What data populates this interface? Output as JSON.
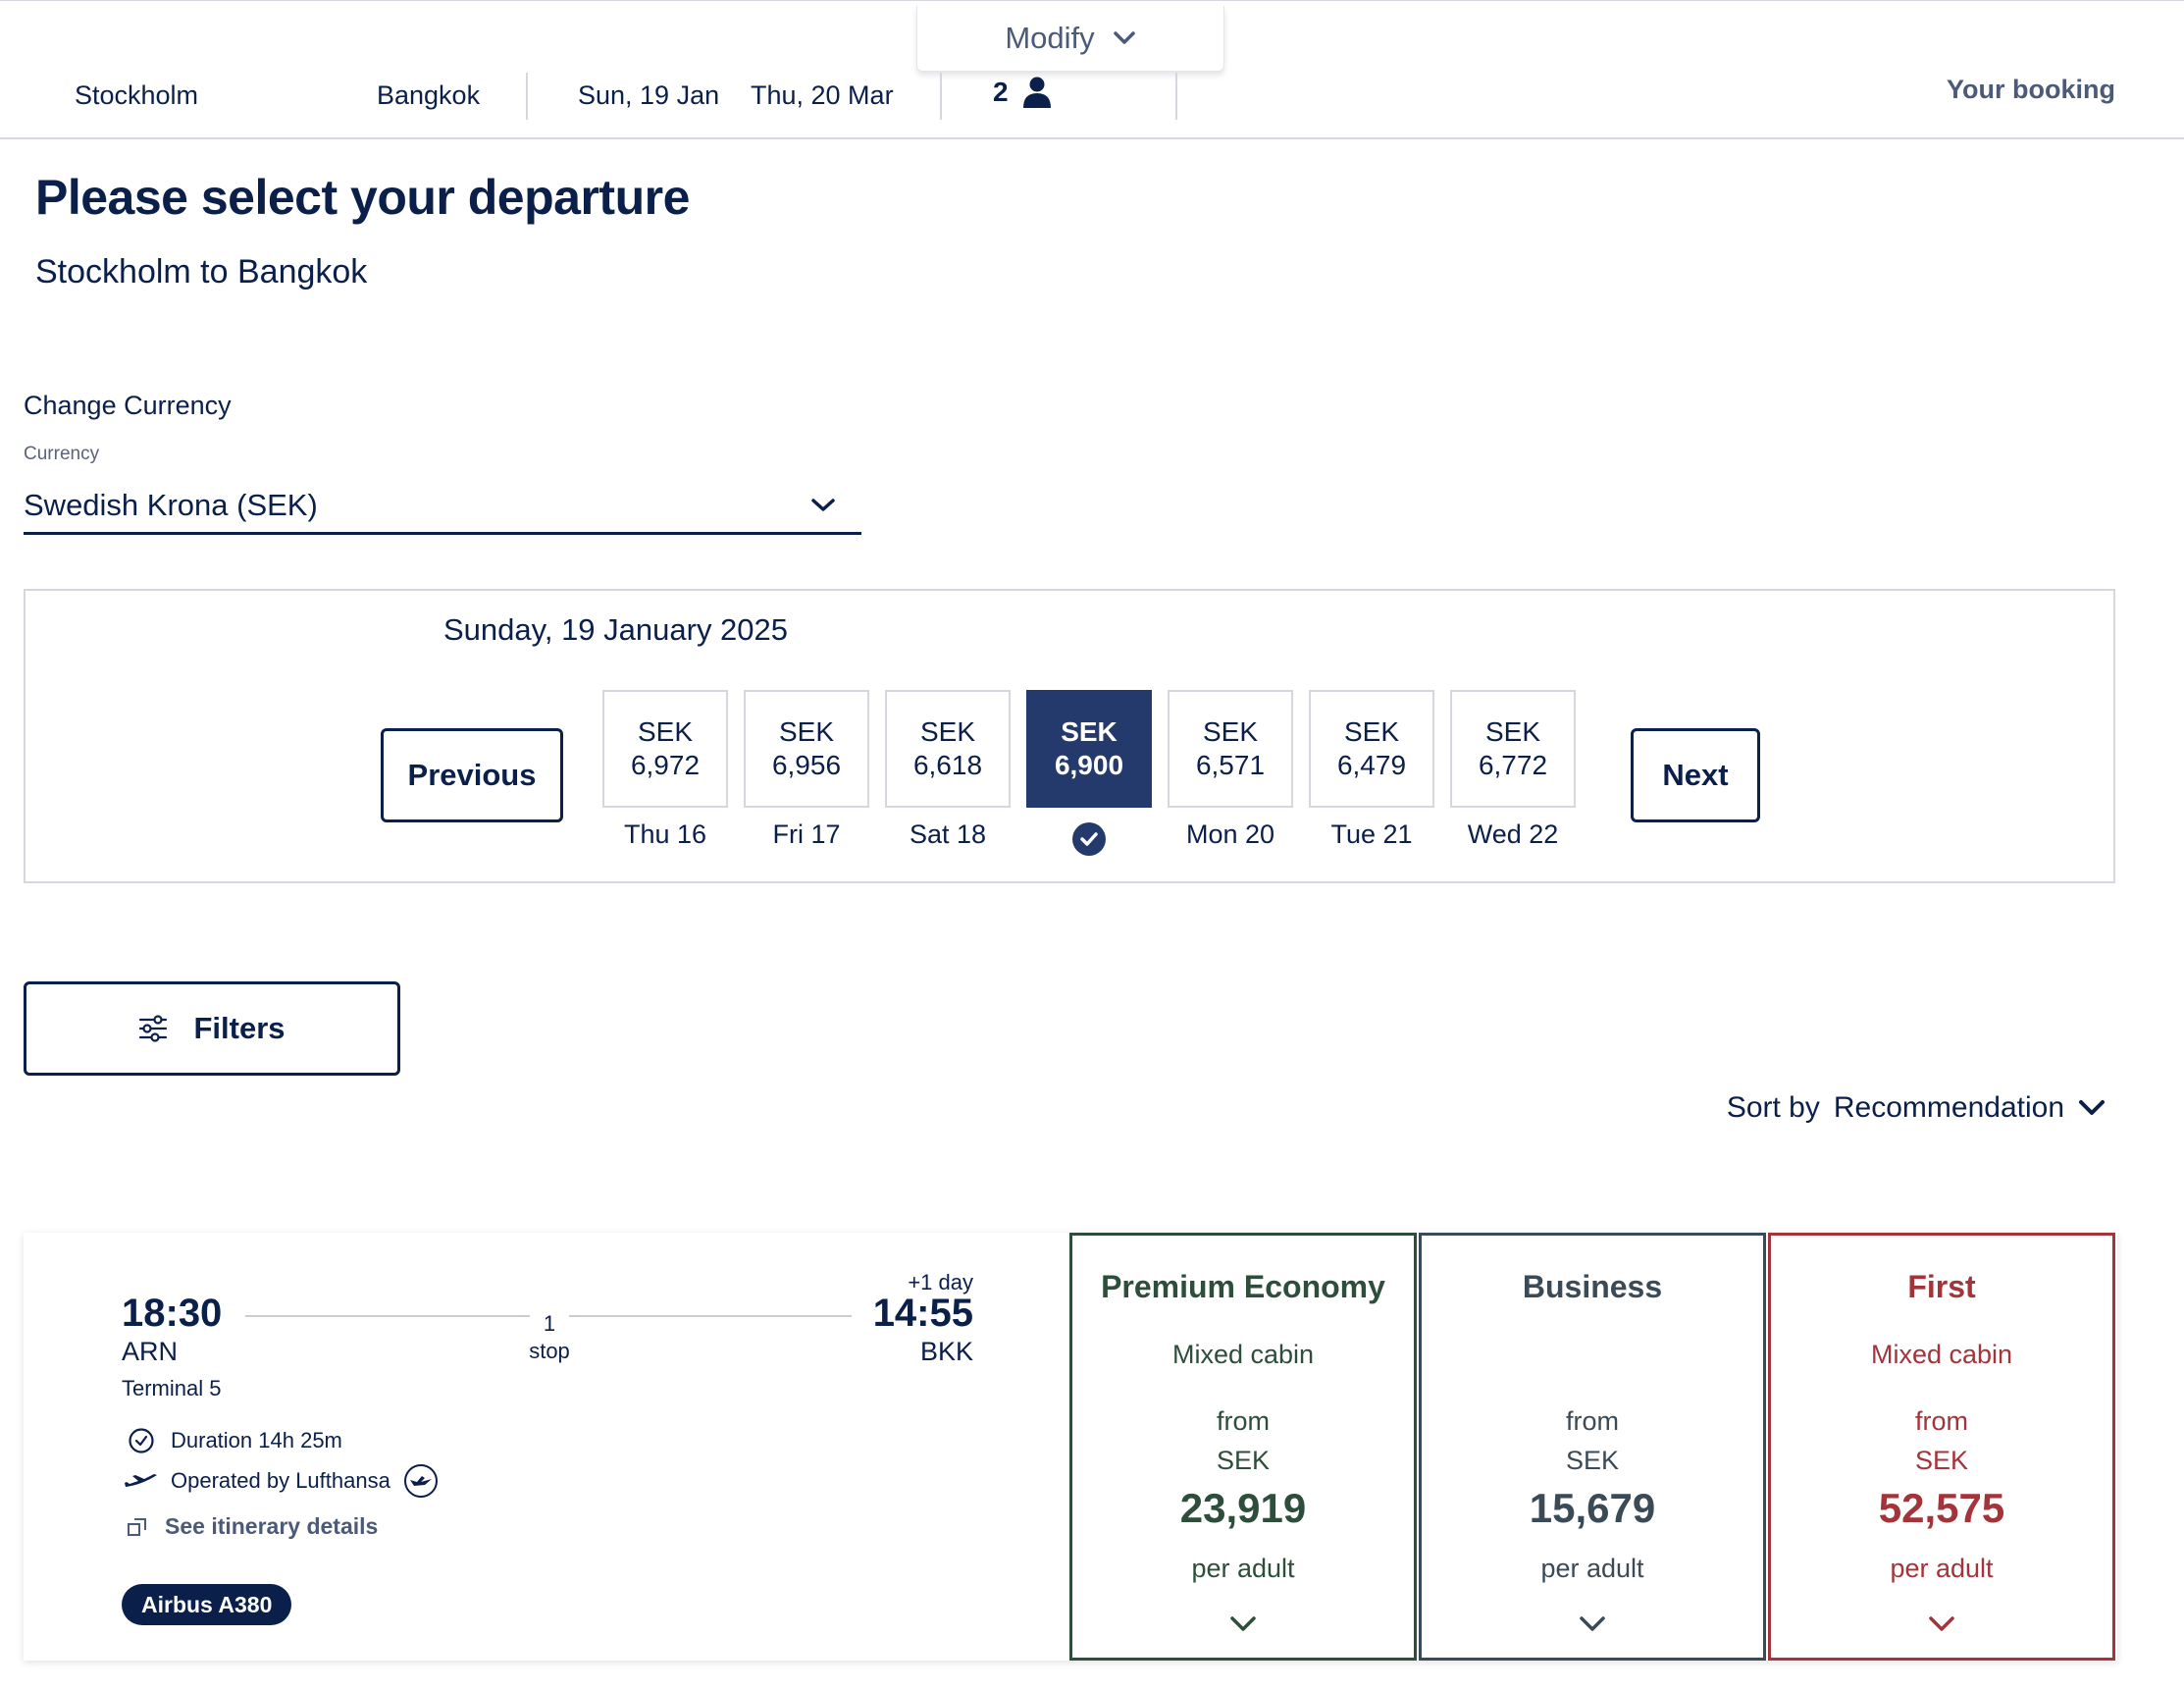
{
  "colors": {
    "navy": "#0b1f4b",
    "selected_day": "#253a6c",
    "premium": "#2c4e3a",
    "business": "#3a4a57",
    "first": "#a2343a"
  },
  "header": {
    "modify_label": "Modify",
    "origin": "Stockholm",
    "destination": "Bangkok",
    "depart_date": "Sun, 19 Jan",
    "return_date": "Thu, 20 Mar",
    "passengers": "2",
    "your_booking": "Your booking"
  },
  "page": {
    "title": "Please select your departure",
    "subtitle": "Stockholm to Bangkok"
  },
  "currency": {
    "section_label": "Change Currency",
    "field_label": "Currency",
    "value": "Swedish Krona (SEK)"
  },
  "dates": {
    "heading": "Sunday, 19 January 2025",
    "previous": "Previous",
    "next": "Next",
    "days": [
      {
        "currency": "SEK",
        "price": "6,972",
        "label": "Thu 16"
      },
      {
        "currency": "SEK",
        "price": "6,956",
        "label": "Fri 17"
      },
      {
        "currency": "SEK",
        "price": "6,618",
        "label": "Sat 18"
      },
      {
        "currency": "SEK",
        "price": "6,900",
        "label": "",
        "selected": true
      },
      {
        "currency": "SEK",
        "price": "6,571",
        "label": "Mon 20"
      },
      {
        "currency": "SEK",
        "price": "6,479",
        "label": "Tue 21"
      },
      {
        "currency": "SEK",
        "price": "6,772",
        "label": "Wed 22"
      }
    ]
  },
  "filters_label": "Filters",
  "sort": {
    "label": "Sort by",
    "value": "Recommendation"
  },
  "flight": {
    "depart_time": "18:30",
    "depart_code": "ARN",
    "terminal": "Terminal 5",
    "stops_count": "1",
    "stops_label": "stop",
    "day_offset": "+1 day",
    "arrive_time": "14:55",
    "arrive_code": "BKK",
    "duration": "Duration 14h 25m",
    "operated_by": "Operated by Lufthansa",
    "itinerary_link": "See itinerary details",
    "aircraft": "Airbus A380"
  },
  "fares": [
    {
      "name": "Premium Economy",
      "cabin": "Mixed cabin",
      "from": "from",
      "currency": "SEK",
      "price": "23,919",
      "per": "per adult"
    },
    {
      "name": "Business",
      "cabin": "",
      "from": "from",
      "currency": "SEK",
      "price": "15,679",
      "per": "per adult"
    },
    {
      "name": "First",
      "cabin": "Mixed cabin",
      "from": "from",
      "currency": "SEK",
      "price": "52,575",
      "per": "per adult"
    }
  ]
}
